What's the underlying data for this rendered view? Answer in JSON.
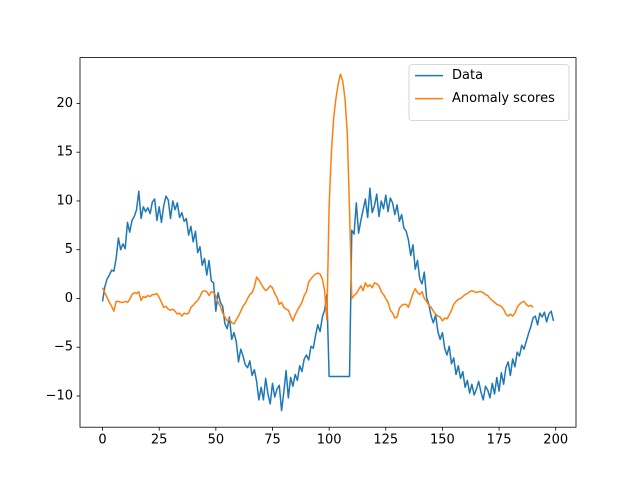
{
  "chart_data": {
    "type": "line",
    "xlim": [
      -9.95,
      208.95
    ],
    "ylim": [
      -13.2,
      24.7
    ],
    "xticks": [
      0,
      25,
      50,
      75,
      100,
      125,
      150,
      175,
      200
    ],
    "yticks": [
      {
        "value": -10,
        "label": "−10"
      },
      {
        "value": -5,
        "label": "−5"
      },
      0,
      5,
      10,
      15,
      20
    ],
    "legend": "upper right",
    "series": [
      {
        "name": "Data",
        "color": "#1f77b4",
        "values": [
          -0.3,
          1.2,
          2.0,
          2.4,
          2.9,
          2.8,
          4.1,
          6.2,
          5.0,
          5.6,
          5.1,
          7.8,
          6.8,
          8.0,
          8.4,
          9.1,
          11.0,
          8.2,
          9.4,
          8.9,
          9.3,
          8.7,
          9.9,
          10.2,
          8.0,
          9.4,
          7.8,
          9.5,
          10.5,
          10.1,
          8.2,
          10.0,
          9.1,
          9.8,
          8.3,
          8.8,
          7.9,
          8.2,
          6.5,
          7.4,
          5.8,
          6.9,
          4.7,
          5.3,
          3.4,
          4.1,
          2.4,
          3.9,
          1.8,
          1.6,
          -1.3,
          0.6,
          -0.4,
          -0.8,
          -2.6,
          -3.1,
          -1.9,
          -4.2,
          -3.5,
          -4.4,
          -6.5,
          -5.2,
          -5.9,
          -6.8,
          -7.1,
          -6.4,
          -7.9,
          -7.3,
          -8.5,
          -10.4,
          -9.1,
          -10.4,
          -8.2,
          -9.8,
          -10.8,
          -8.7,
          -10.1,
          -9.3,
          -8.9,
          -11.5,
          -9.6,
          -7.4,
          -10.2,
          -8.1,
          -9.0,
          -7.8,
          -8.4,
          -6.9,
          -7.5,
          -6.2,
          -5.8,
          -6.3,
          -4.9,
          -5.1,
          -3.8,
          -2.7,
          -3.4,
          -1.9,
          -1.2,
          0.4,
          -8.0,
          -8.0,
          -8.0,
          -8.0,
          -8.0,
          -8.0,
          -8.0,
          -8.0,
          -8.0,
          -8.0,
          7.0,
          6.6,
          9.8,
          6.7,
          8.0,
          9.1,
          10.2,
          8.3,
          11.3,
          8.8,
          9.5,
          10.7,
          8.4,
          10.0,
          9.2,
          10.6,
          8.9,
          10.3,
          9.8,
          8.6,
          9.6,
          7.9,
          8.6,
          7.2,
          6.9,
          6.0,
          4.4,
          5.5,
          3.0,
          3.9,
          2.0,
          1.5,
          2.7,
          0.1,
          -0.6,
          -1.8,
          -2.5,
          -1.7,
          -3.4,
          -4.2,
          -3.5,
          -5.1,
          -5.8,
          -4.9,
          -6.7,
          -6.1,
          -7.8,
          -6.9,
          -8.2,
          -7.5,
          -9.1,
          -8.4,
          -9.7,
          -8.8,
          -9.9,
          -9.3,
          -8.5,
          -9.6,
          -10.4,
          -9.0,
          -9.4,
          -10.2,
          -8.7,
          -9.8,
          -8.1,
          -9.5,
          -7.6,
          -8.8,
          -7.1,
          -6.5,
          -7.9,
          -6.2,
          -7.0,
          -5.5,
          -5.9,
          -4.8,
          -5.2,
          -4.4,
          -3.6,
          -2.9,
          -2.0,
          -1.8,
          -2.7,
          -1.5,
          -1.9,
          -1.4,
          -2.4,
          -1.6,
          -1.3,
          -2.3
        ]
      },
      {
        "name": "Anomaly scores",
        "color": "#ff7f0e",
        "values": [
          1.1,
          0.6,
          0.1,
          -0.4,
          -0.8,
          -1.3,
          -0.3,
          -0.3,
          -0.4,
          -0.4,
          -0.3,
          -0.4,
          -0.1,
          0.4,
          0.6,
          0.5,
          0.7,
          -0.2,
          0.2,
          0.1,
          0.3,
          0.2,
          0.4,
          0.4,
          0.5,
          0.1,
          -0.4,
          -0.9,
          -0.8,
          -1.1,
          -1.2,
          -1.1,
          -1.3,
          -1.6,
          -1.5,
          -1.8,
          -1.5,
          -1.6,
          -1.5,
          -0.9,
          -0.7,
          -0.4,
          -0.2,
          0.2,
          0.7,
          0.8,
          0.7,
          0.3,
          0.7,
          0.6,
          0.3,
          -0.4,
          -0.8,
          -1.5,
          -1.9,
          -2.3,
          -2.1,
          -2.5,
          -2.6,
          -2.2,
          -1.8,
          -1.3,
          -0.8,
          -0.5,
          0.0,
          0.4,
          0.6,
          1.2,
          2.2,
          1.9,
          1.5,
          1.1,
          0.8,
          1.0,
          1.3,
          1.1,
          0.5,
          0.1,
          -0.6,
          -0.4,
          -0.9,
          -1.1,
          -1.2,
          -1.8,
          -2.3,
          -1.7,
          -1.2,
          -0.8,
          -0.4,
          0.3,
          0.7,
          1.7,
          2.0,
          2.3,
          2.5,
          2.6,
          2.5,
          2.0,
          0.8,
          -2.2,
          9.5,
          15.0,
          18.5,
          20.5,
          22.0,
          23.0,
          22.3,
          20.5,
          17.0,
          9.0,
          0.0,
          0.3,
          0.5,
          0.9,
          1.3,
          0.8,
          1.6,
          1.2,
          1.4,
          1.1,
          1.6,
          1.5,
          1.3,
          0.7,
          0.4,
          0.0,
          -0.4,
          -1.2,
          -1.5,
          -2.0,
          -1.9,
          -1.0,
          -0.7,
          -0.6,
          -0.6,
          -0.9,
          -0.2,
          0.5,
          1.0,
          0.6,
          0.4,
          0.7,
          0.0,
          -0.3,
          -0.7,
          -0.9,
          -1.3,
          -1.6,
          -1.8,
          -1.9,
          -2.3,
          -2.0,
          -2.1,
          -1.7,
          -1.2,
          -0.6,
          -0.3,
          -0.1,
          0.0,
          0.2,
          0.4,
          0.5,
          0.7,
          0.8,
          0.7,
          0.6,
          0.7,
          0.7,
          0.6,
          0.4,
          0.3,
          0.0,
          -0.2,
          -0.4,
          -0.6,
          -0.7,
          -0.8,
          -1.1,
          -1.6,
          -1.8,
          -1.6,
          -1.8,
          -1.5,
          -0.9,
          -0.6,
          -0.4,
          -0.3,
          -0.6,
          -0.8,
          -0.7,
          -0.9
        ]
      }
    ]
  }
}
